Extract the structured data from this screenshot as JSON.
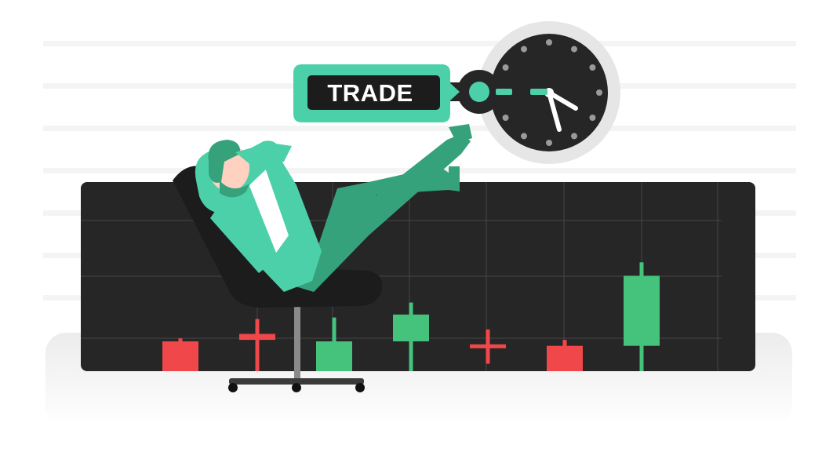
{
  "illustration": {
    "badge_label": "TRADE",
    "colors": {
      "background_stripe": "#f4f4f4",
      "chart_panel": "#262626",
      "grid_line": "#4a4a4a",
      "bull": "#45c27b",
      "bear": "#f0484a",
      "accent": "#4cd0a9",
      "suit": "#4cd0a9",
      "suit_shadow": "#35a27c",
      "hair": "#35a27c",
      "skin": "#ffd1c0",
      "chair": "#1c1c1c",
      "clock_face": "#262626",
      "clock_ring": "#e6e6e6",
      "clock_ticks": "#9a9a9a"
    },
    "icons": [
      "clock-icon",
      "businessman-figure",
      "office-chair",
      "candlestick-chart"
    ]
  },
  "chart_data": {
    "type": "candlestick",
    "title": "",
    "xlabel": "",
    "ylabel": "",
    "candles": [
      {
        "index": 1,
        "direction": "bear",
        "open": 2.0,
        "close": 0.0,
        "high": 2.2,
        "low": 0.0
      },
      {
        "index": 2,
        "direction": "bear",
        "open": 2.5,
        "close": 2.1,
        "high": 3.5,
        "low": 0.0
      },
      {
        "index": 3,
        "direction": "bull",
        "open": 0.0,
        "close": 2.0,
        "high": 3.6,
        "low": 0.0
      },
      {
        "index": 4,
        "direction": "bull",
        "open": 2.0,
        "close": 3.8,
        "high": 4.6,
        "low": 0.0
      },
      {
        "index": 5,
        "direction": "bear",
        "open": 1.8,
        "close": 1.6,
        "high": 2.8,
        "low": 0.5
      },
      {
        "index": 6,
        "direction": "bear",
        "open": 1.7,
        "close": 0.0,
        "high": 2.1,
        "low": 0.0
      },
      {
        "index": 7,
        "direction": "bull",
        "open": 1.7,
        "close": 6.4,
        "high": 7.3,
        "low": 0.0
      }
    ],
    "ylim": [
      0,
      9.3
    ],
    "grid": true
  }
}
